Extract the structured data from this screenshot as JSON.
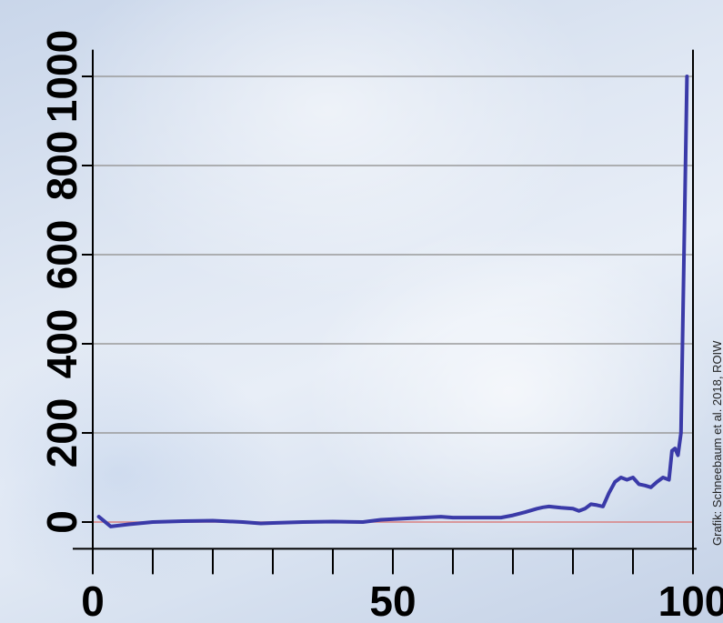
{
  "chart_data": {
    "type": "line",
    "title": "",
    "xlabel": "",
    "ylabel": "",
    "xlim": [
      0,
      100
    ],
    "ylim": [
      -60,
      1060
    ],
    "y_ticks": [
      0,
      200,
      400,
      600,
      800,
      1000
    ],
    "y_tick_labels": [
      "0",
      "200",
      "400",
      "600",
      "800",
      "1000"
    ],
    "x_major_ticks": [
      0,
      10,
      20,
      30,
      40,
      50,
      60,
      70,
      80,
      90,
      100
    ],
    "x_tick_labels": [
      "0",
      "50",
      "100"
    ],
    "x_tick_label_values": [
      0,
      50,
      100
    ],
    "grid": true,
    "reference_line": {
      "y": 0,
      "color": "#d98080"
    },
    "line_color": "#3a3aa8",
    "grid_color": "#9a9a9a",
    "credit": "Grafik: Schneebaum et al. 2018, ROIW",
    "series": [
      {
        "name": "",
        "x": [
          1,
          3,
          6,
          10,
          15,
          20,
          25,
          28,
          30,
          35,
          40,
          45,
          48,
          52,
          55,
          58,
          60,
          64,
          68,
          70,
          72,
          74,
          75,
          76,
          78,
          80,
          81,
          82,
          83,
          84,
          85,
          86,
          87,
          88,
          89,
          90,
          91,
          92,
          93,
          94,
          95,
          96,
          96.5,
          97,
          97.5,
          98,
          99
        ],
        "y": [
          12,
          -10,
          -5,
          0,
          2,
          3,
          0,
          -3,
          -2,
          0,
          1,
          0,
          5,
          8,
          10,
          12,
          10,
          10,
          10,
          15,
          22,
          30,
          33,
          35,
          32,
          30,
          25,
          30,
          40,
          38,
          35,
          65,
          90,
          100,
          95,
          100,
          85,
          82,
          78,
          90,
          100,
          95,
          160,
          165,
          150,
          200,
          1000
        ]
      }
    ]
  }
}
